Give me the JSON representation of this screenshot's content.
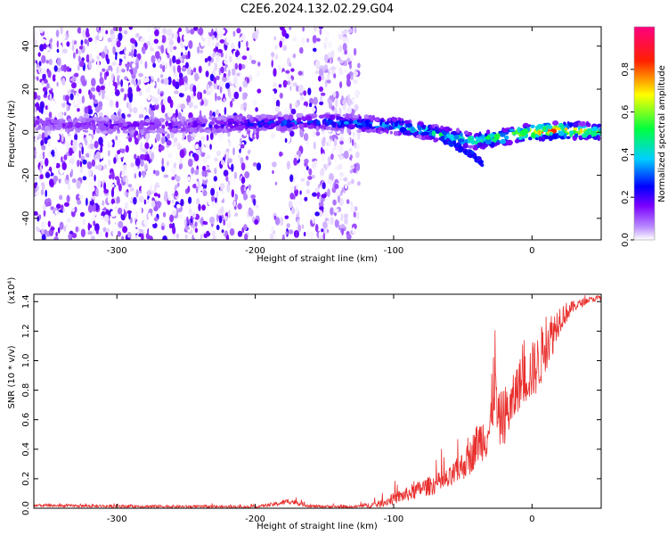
{
  "title": "C2E6.2024.132.02.29.G04",
  "chart_data": [
    {
      "type": "heatmap",
      "xlabel": "Height of straight line (km)",
      "ylabel": "Frequency (Hz)",
      "xlim": [
        -360,
        50
      ],
      "ylim": [
        -50,
        49
      ],
      "x_ticks": [
        -300,
        -200,
        -100,
        0
      ],
      "x_tick_labels": [
        "-300",
        "-200",
        "-100",
        "0"
      ],
      "y_ticks": [
        -40,
        -20,
        0,
        20,
        40
      ],
      "y_tick_labels": [
        "-40",
        "-20",
        "0",
        "20",
        "40"
      ],
      "colorbar": {
        "label": "Normalized spectral amplitude",
        "range": [
          0,
          1
        ],
        "ticks": [
          0,
          0.2,
          0.4,
          0.6,
          0.8
        ],
        "tick_labels": [
          "0.0",
          "0.2",
          "0.4",
          "0.6",
          "0.8"
        ],
        "colors": [
          "#ffffff",
          "#8a3cff",
          "#0000ff",
          "#00d0ff",
          "#00ff40",
          "#ffff00",
          "#ff0000",
          "#ff0080"
        ]
      },
      "noise_floor": {
        "x_range": [
          -360,
          -125
        ],
        "gap_x_range": [
          -197,
          -188
        ],
        "amplitude": 0.15
      },
      "ridge": {
        "x": [
          -360,
          -300,
          -250,
          -200,
          -150,
          -100,
          -80,
          -60,
          -40,
          -20,
          0,
          20,
          50
        ],
        "center_freq": [
          4,
          3,
          3,
          4,
          5,
          3,
          1,
          -2,
          -4,
          -2,
          0,
          1,
          0
        ],
        "peak_amplitude": [
          0.15,
          0.18,
          0.2,
          0.3,
          0.32,
          0.45,
          0.5,
          0.55,
          0.55,
          0.65,
          0.85,
          0.9,
          0.6
        ]
      },
      "branch": {
        "x": [
          -65,
          -50,
          -40,
          -35
        ],
        "freq": [
          -3,
          -8,
          -12,
          -15
        ]
      }
    },
    {
      "type": "line",
      "xlabel": "Height of straight line (km)",
      "ylabel": "SNR (10 * v/v)",
      "y_scale_label": "(x10⁴)",
      "xlim": [
        -360,
        50
      ],
      "ylim": [
        0,
        1.45
      ],
      "x_ticks": [
        -300,
        -200,
        -100,
        0
      ],
      "x_tick_labels": [
        "-300",
        "-200",
        "-100",
        "0"
      ],
      "y_ticks": [
        0,
        0.2,
        0.4,
        0.6,
        0.8,
        1.0,
        1.2,
        1.4
      ],
      "y_tick_labels": [
        "0.0",
        "0.2",
        "0.4",
        "0.6",
        "0.8",
        "1.0",
        "1.2",
        "1.4"
      ],
      "series": [
        {
          "name": "SNR",
          "color": "#e8302e",
          "x": [
            -360,
            -300,
            -200,
            -185,
            -175,
            -160,
            -130,
            -110,
            -100,
            -90,
            -80,
            -70,
            -60,
            -50,
            -45,
            -40,
            -35,
            -30,
            -27,
            -25,
            -20,
            -15,
            -10,
            -5,
            0,
            5,
            10,
            15,
            20,
            30,
            40,
            50
          ],
          "y": [
            0.02,
            0.015,
            0.01,
            0.03,
            0.05,
            0.015,
            0.01,
            0.03,
            0.07,
            0.1,
            0.14,
            0.17,
            0.2,
            0.3,
            0.35,
            0.45,
            0.5,
            0.55,
            1.0,
            0.6,
            0.65,
            0.7,
            0.85,
            0.9,
            0.95,
            1.0,
            1.15,
            1.2,
            1.3,
            1.37,
            1.41,
            1.43
          ],
          "noise": [
            0.01,
            0.01,
            0.008,
            0.015,
            0.02,
            0.01,
            0.008,
            0.025,
            0.04,
            0.05,
            0.06,
            0.07,
            0.08,
            0.1,
            0.12,
            0.14,
            0.16,
            0.2,
            0.35,
            0.18,
            0.2,
            0.18,
            0.18,
            0.18,
            0.2,
            0.2,
            0.2,
            0.15,
            0.1,
            0.04,
            0.02,
            0.02
          ]
        }
      ]
    }
  ]
}
